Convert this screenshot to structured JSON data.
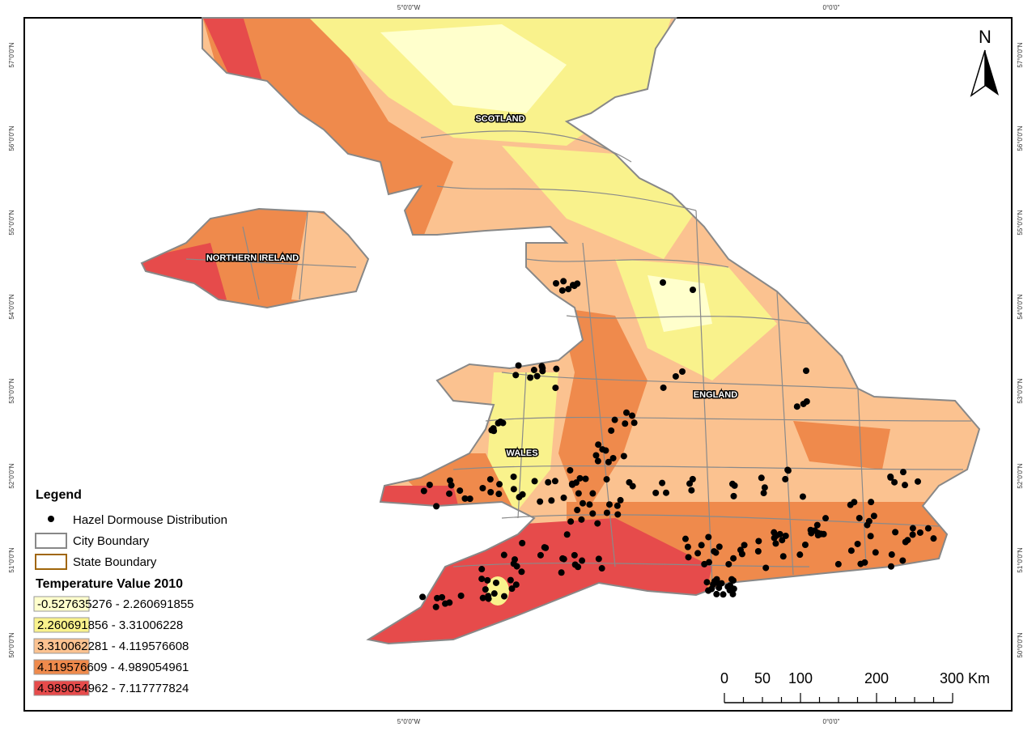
{
  "graticule": {
    "longitudes": [
      "5°0'0\"W",
      "0°0'0\""
    ],
    "latitudes": [
      "57°0'0\"N",
      "56°0'0\"N",
      "55°0'0\"N",
      "54°0'0\"N",
      "53°0'0\"N",
      "52°0'0\"N",
      "51°0'0\"N",
      "50°0'0\"N"
    ]
  },
  "regions": [
    "SCOTLAND",
    "NORTHERN IRELAND",
    "WALES",
    "ENGLAND"
  ],
  "north_arrow": "N",
  "legend": {
    "title": "Legend",
    "items": [
      "Hazel Dormouse Distribution",
      "City Boundary",
      "State Boundary"
    ],
    "temperature_title": "Temperature Value 2010",
    "classes": [
      {
        "label": "-0.527635276 - 2.260691855",
        "color": "#ffffcc"
      },
      {
        "label": "2.260691856 - 3.31006228",
        "color": "#f9f28c"
      },
      {
        "label": "3.310062281 - 4.119576608",
        "color": "#fbc290"
      },
      {
        "label": "4.119576609 - 4.989054961",
        "color": "#ef8a4c"
      },
      {
        "label": "4.989054962 - 7.117777824",
        "color": "#e64b4b"
      }
    ]
  },
  "scale_bar": {
    "labels": [
      "0",
      "50",
      "100",
      "200",
      "300 Km"
    ]
  }
}
